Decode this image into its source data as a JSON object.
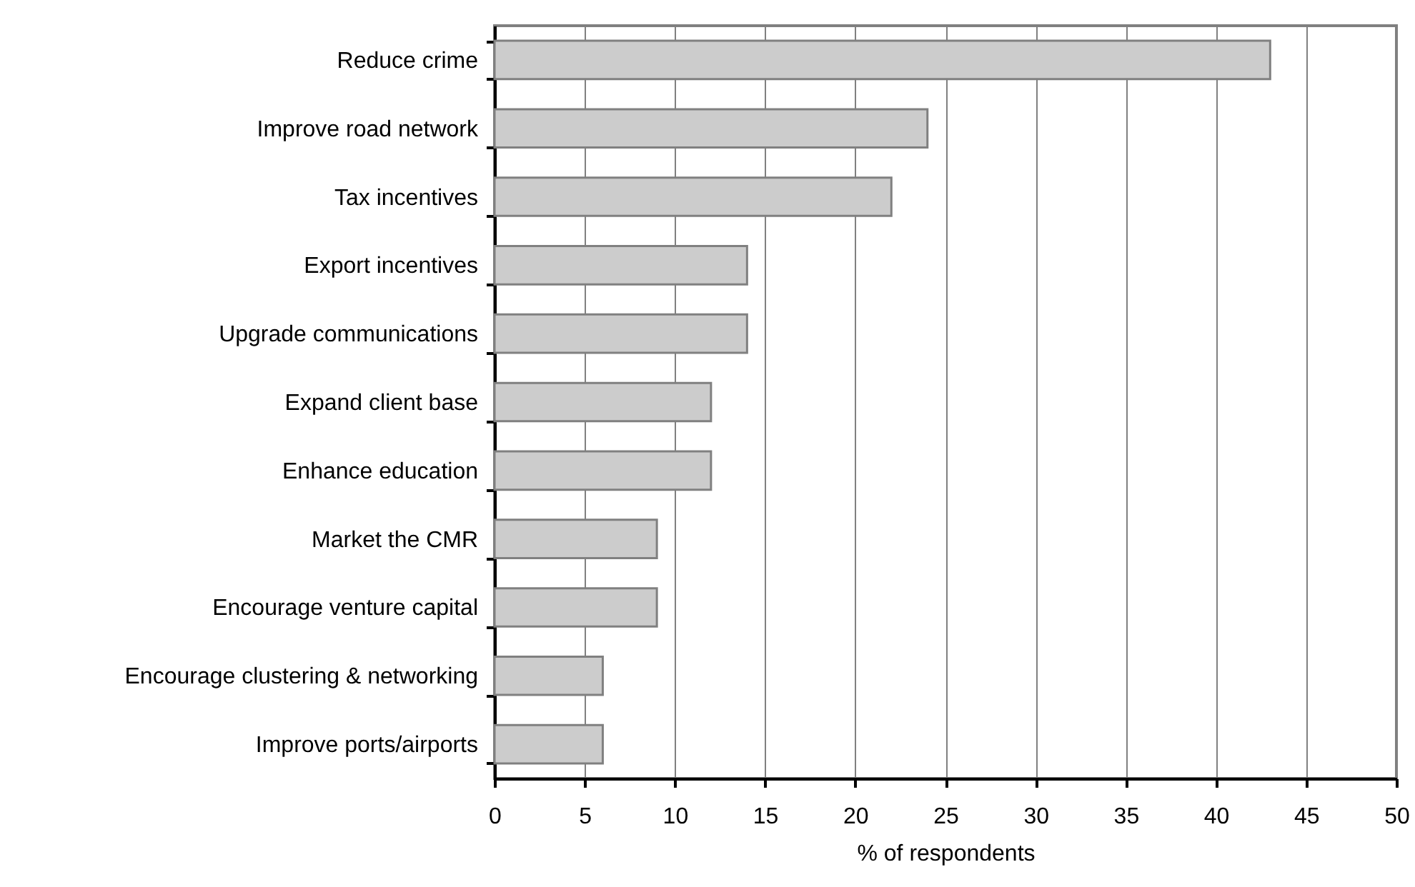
{
  "chart_data": {
    "type": "bar",
    "orientation": "horizontal",
    "categories": [
      "Reduce crime",
      "Improve road network",
      "Tax incentives",
      "Export incentives",
      "Upgrade communications",
      "Expand client base",
      "Enhance education",
      "Market the CMR",
      "Encourage venture capital",
      "Encourage clustering & networking",
      "Improve ports/airports"
    ],
    "values": [
      43,
      24,
      22,
      14,
      14,
      12,
      12,
      9,
      9,
      6,
      6
    ],
    "color": "#cccccc",
    "xlabel": "% of respondents",
    "xlim": [
      0,
      50
    ],
    "xticks": [
      0,
      5,
      10,
      15,
      20,
      25,
      30,
      35,
      40,
      45,
      50
    ],
    "grid": "x"
  }
}
